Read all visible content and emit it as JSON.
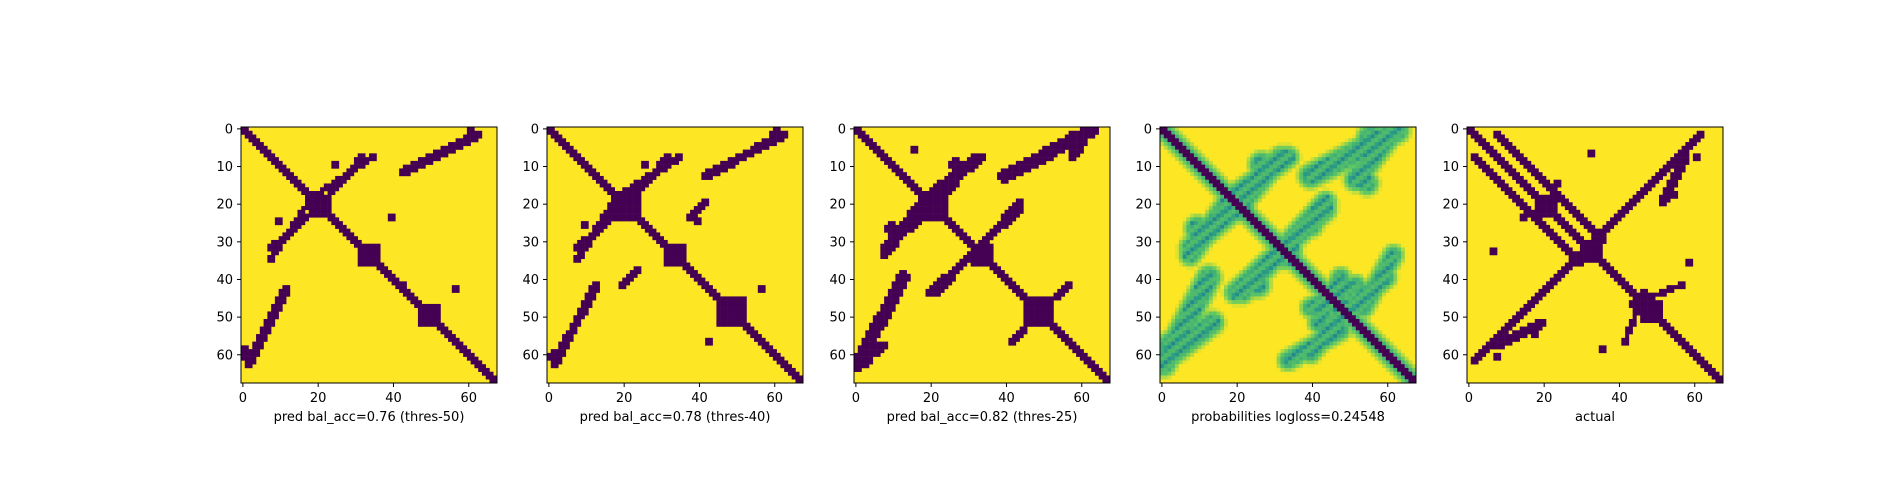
{
  "colors": {
    "low": "#440154",
    "high": "#fde725",
    "colormap": [
      "#440154",
      "#3b528b",
      "#21918c",
      "#5ec962",
      "#fde725"
    ]
  },
  "chart_data": [
    {
      "type": "heatmap",
      "matrix_size": 68,
      "colormap": "viridis",
      "xlabel": "pred bal_acc=0.76 (thres-50)",
      "xticks": [
        0,
        20,
        40,
        60
      ],
      "yticks": [
        0,
        10,
        20,
        30,
        40,
        50,
        60
      ],
      "diag_width": 2.2,
      "blocks": [
        {
          "c": 21,
          "r": 3
        },
        {
          "c": 34,
          "r": 2.5
        },
        {
          "c": 50,
          "r": 3
        }
      ],
      "segments": [
        {
          "from": [
            20,
            18
          ],
          "to": [
            35,
            8
          ],
          "w": 0.9
        },
        {
          "from": [
            8,
            32
          ],
          "to": [
            20,
            22
          ],
          "w": 0.9
        },
        {
          "from": [
            43,
            12
          ],
          "to": [
            63,
            2
          ],
          "w": 1.2
        }
      ],
      "blobs": [
        {
          "x": 25,
          "y": 10,
          "r": 1.2
        },
        {
          "x": 10,
          "y": 25,
          "r": 1.3
        },
        {
          "x": 40,
          "y": 24,
          "r": 1.0
        },
        {
          "x": 61,
          "y": 1,
          "r": 1.5
        },
        {
          "x": 1,
          "y": 60,
          "r": 1.6
        },
        {
          "x": 43,
          "y": 42,
          "r": 0.9
        },
        {
          "x": 57,
          "y": 43,
          "r": 0.8
        },
        {
          "x": 42,
          "y": 57,
          "r": 0.6
        }
      ],
      "probability": false
    },
    {
      "type": "heatmap",
      "matrix_size": 68,
      "colormap": "viridis",
      "xlabel": "pred bal_acc=0.78 (thres-40)",
      "xticks": [
        0,
        20,
        40,
        60
      ],
      "yticks": [
        0,
        10,
        20,
        30,
        40,
        50,
        60
      ],
      "diag_width": 2.4,
      "blocks": [
        {
          "c": 21,
          "r": 3.5
        },
        {
          "c": 34,
          "r": 2.5
        },
        {
          "c": 49,
          "r": 3.5
        }
      ],
      "segments": [
        {
          "from": [
            20,
            18
          ],
          "to": [
            35,
            8
          ],
          "w": 1.0
        },
        {
          "from": [
            8,
            32
          ],
          "to": [
            20,
            22
          ],
          "w": 1.0
        },
        {
          "from": [
            42,
            13
          ],
          "to": [
            63,
            2
          ],
          "w": 1.3
        },
        {
          "from": [
            20,
            42
          ],
          "to": [
            24,
            38
          ],
          "w": 0.8
        }
      ],
      "blobs": [
        {
          "x": 26,
          "y": 10,
          "r": 1.3
        },
        {
          "x": 10,
          "y": 26,
          "r": 1.4
        },
        {
          "x": 40,
          "y": 25,
          "r": 1.2
        },
        {
          "x": 61,
          "y": 2,
          "r": 1.8
        },
        {
          "x": 2,
          "y": 61,
          "r": 1.8
        },
        {
          "x": 57,
          "y": 43,
          "r": 0.9
        },
        {
          "x": 43,
          "y": 57,
          "r": 0.9
        }
      ],
      "probability": false
    },
    {
      "type": "heatmap",
      "matrix_size": 68,
      "colormap": "viridis",
      "xlabel": "pred bal_acc=0.82 (thres-25)",
      "xticks": [
        0,
        20,
        40,
        60
      ],
      "yticks": [
        0,
        10,
        20,
        30,
        40,
        50,
        60
      ],
      "diag_width": 2.6,
      "blocks": [
        {
          "c": 21,
          "r": 3.8
        },
        {
          "c": 34,
          "r": 2.8
        },
        {
          "c": 49,
          "r": 3.8
        }
      ],
      "segments": [
        {
          "from": [
            20,
            18
          ],
          "to": [
            34,
            8
          ],
          "w": 1.4
        },
        {
          "from": [
            8,
            32
          ],
          "to": [
            20,
            22
          ],
          "w": 1.4
        },
        {
          "from": [
            40,
            13
          ],
          "to": [
            63,
            1
          ],
          "w": 1.8
        },
        {
          "from": [
            20,
            44
          ],
          "to": [
            44,
            22
          ],
          "w": 1.0
        },
        {
          "from": [
            48,
            50
          ],
          "to": [
            57,
            42
          ],
          "w": 1.0
        },
        {
          "from": [
            1,
            62
          ],
          "to": [
            8,
            58
          ],
          "w": 1.5
        }
      ],
      "blobs": [
        {
          "x": 27,
          "y": 10,
          "r": 1.6
        },
        {
          "x": 10,
          "y": 27,
          "r": 1.7
        },
        {
          "x": 58,
          "y": 3,
          "r": 2.0
        },
        {
          "x": 3,
          "y": 62,
          "r": 2.0
        },
        {
          "x": 16,
          "y": 6,
          "r": 0.8
        }
      ],
      "probability": false
    },
    {
      "type": "heatmap",
      "matrix_size": 68,
      "colormap": "viridis",
      "xlabel": "probabilities logloss=0.24548",
      "xticks": [
        0,
        20,
        40,
        60
      ],
      "yticks": [
        0,
        10,
        20,
        30,
        40,
        50,
        60
      ],
      "diag_width": 2.4,
      "blocks": [
        {
          "c": 21,
          "r": 3.0
        },
        {
          "c": 34,
          "r": 2.5
        },
        {
          "c": 49,
          "r": 3.0
        }
      ],
      "segments": [
        {
          "from": [
            20,
            18
          ],
          "to": [
            34,
            8
          ],
          "w": 1.6
        },
        {
          "from": [
            8,
            32
          ],
          "to": [
            20,
            22
          ],
          "w": 1.6
        },
        {
          "from": [
            40,
            13
          ],
          "to": [
            63,
            1
          ],
          "w": 2.0
        },
        {
          "from": [
            20,
            44
          ],
          "to": [
            44,
            22
          ],
          "w": 1.6
        },
        {
          "from": [
            48,
            50
          ],
          "to": [
            60,
            40
          ],
          "w": 1.5
        },
        {
          "from": [
            1,
            62
          ],
          "to": [
            14,
            52
          ],
          "w": 1.8
        },
        {
          "from": [
            40,
            48
          ],
          "to": [
            52,
            42
          ],
          "w": 1.4
        },
        {
          "from": [
            34,
            62
          ],
          "to": [
            48,
            54
          ],
          "w": 1.4
        }
      ],
      "blobs": [
        {
          "x": 27,
          "y": 10,
          "r": 2.2
        },
        {
          "x": 10,
          "y": 27,
          "r": 2.2
        },
        {
          "x": 56,
          "y": 3,
          "r": 2.5
        },
        {
          "x": 3,
          "y": 58,
          "r": 2.5
        },
        {
          "x": 40,
          "y": 26,
          "r": 2.0
        },
        {
          "x": 26,
          "y": 42,
          "r": 2.0
        },
        {
          "x": 55,
          "y": 15,
          "r": 1.8
        }
      ],
      "probability": true
    },
    {
      "type": "heatmap",
      "matrix_size": 68,
      "colormap": "viridis",
      "xlabel": "actual",
      "xticks": [
        0,
        20,
        40,
        60
      ],
      "yticks": [
        0,
        10,
        20,
        30,
        40,
        50,
        60
      ],
      "diag_width": 2.3,
      "blocks": [
        {
          "c": 21,
          "r": 2.5
        },
        {
          "c": 33,
          "r": 2.5
        },
        {
          "c": 49,
          "r": 2.5
        }
      ],
      "segments": [
        {
          "from": [
            2,
            8
          ],
          "to": [
            30,
            36
          ],
          "w": 1.0
        },
        {
          "from": [
            2,
            62
          ],
          "to": [
            62,
            2
          ],
          "w": 1.2
        },
        {
          "from": [
            44,
            47
          ],
          "to": [
            57,
            42
          ],
          "w": 0.8
        },
        {
          "from": [
            8,
            58
          ],
          "to": [
            20,
            52
          ],
          "w": 1.2
        }
      ],
      "blobs": [
        {
          "x": 33,
          "y": 7,
          "r": 1.4
        },
        {
          "x": 7,
          "y": 33,
          "r": 1.4
        },
        {
          "x": 61,
          "y": 8,
          "r": 1.2
        },
        {
          "x": 8,
          "y": 61,
          "r": 1.2
        },
        {
          "x": 59,
          "y": 36,
          "r": 1.2
        },
        {
          "x": 36,
          "y": 59,
          "r": 1.2
        },
        {
          "x": 15,
          "y": 24,
          "r": 0.8
        },
        {
          "x": 24,
          "y": 15,
          "r": 0.8
        },
        {
          "x": 55,
          "y": 18,
          "r": 0.9
        },
        {
          "x": 18,
          "y": 55,
          "r": 0.9
        },
        {
          "x": 27,
          "y": 8,
          "r": 0.7
        },
        {
          "x": 8,
          "y": 27,
          "r": 0.7
        }
      ],
      "probability": false
    }
  ]
}
